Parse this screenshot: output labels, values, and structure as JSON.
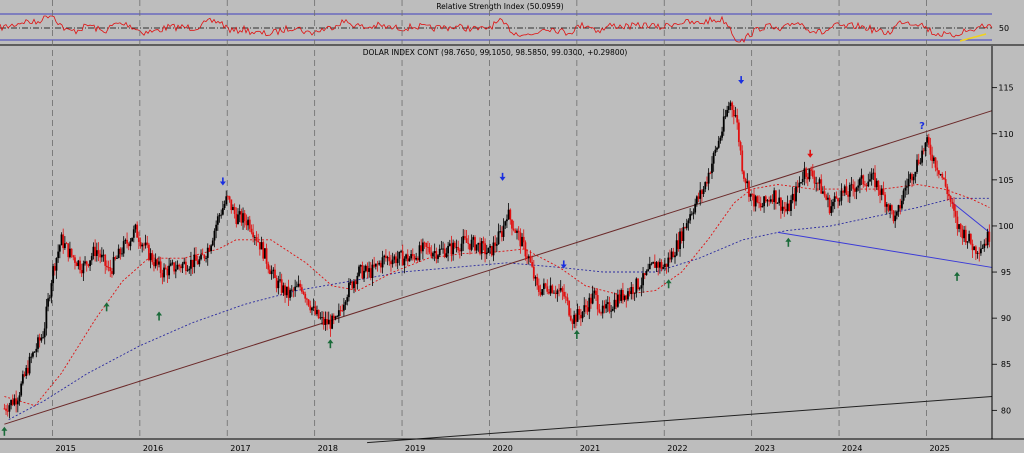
{
  "chart_data": [
    {
      "panel": "rsi",
      "type": "line",
      "title": "Relative Strength Index (50.0959)",
      "reference_level": 50,
      "y_tick_labels": [
        "50"
      ],
      "colors": {
        "line": "#e01010",
        "band": "#4040c0",
        "midline": "#000000"
      }
    },
    {
      "panel": "price",
      "type": "candlestick",
      "title": "DOLAR INDEX CONT (98.7650, 99.1050, 98.5850, 99.0300, +0.29800)",
      "x_tick_labels": [
        "2015",
        "2016",
        "2017",
        "2018",
        "2019",
        "2020",
        "2021",
        "2022",
        "2023",
        "2024",
        "2025"
      ],
      "y_tick_labels": [
        "115",
        "110",
        "105",
        "100",
        "95",
        "90",
        "85",
        "80"
      ],
      "ylim": [
        77,
        118
      ],
      "xlim": [
        2014.4,
        2025.75
      ],
      "series_close": [
        [
          2014.45,
          80.2
        ],
        [
          2014.6,
          81.5
        ],
        [
          2014.75,
          85.5
        ],
        [
          2014.9,
          88.5
        ],
        [
          2015.0,
          95.0
        ],
        [
          2015.1,
          98.5
        ],
        [
          2015.2,
          97.0
        ],
        [
          2015.35,
          95.5
        ],
        [
          2015.5,
          97.5
        ],
        [
          2015.65,
          95.0
        ],
        [
          2015.8,
          97.5
        ],
        [
          2015.95,
          99.5
        ],
        [
          2016.1,
          97.0
        ],
        [
          2016.25,
          95.0
        ],
        [
          2016.4,
          95.5
        ],
        [
          2016.55,
          96.0
        ],
        [
          2016.7,
          96.2
        ],
        [
          2016.8,
          98.0
        ],
        [
          2016.9,
          101.0
        ],
        [
          2017.0,
          103.0
        ],
        [
          2017.1,
          101.0
        ],
        [
          2017.25,
          100.5
        ],
        [
          2017.4,
          97.5
        ],
        [
          2017.55,
          94.0
        ],
        [
          2017.7,
          92.5
        ],
        [
          2017.85,
          93.5
        ],
        [
          2018.0,
          90.5
        ],
        [
          2018.1,
          89.5
        ],
        [
          2018.25,
          89.5
        ],
        [
          2018.35,
          92.5
        ],
        [
          2018.5,
          95.0
        ],
        [
          2018.65,
          95.0
        ],
        [
          2018.8,
          96.5
        ],
        [
          2018.95,
          96.5
        ],
        [
          2019.1,
          96.5
        ],
        [
          2019.25,
          97.5
        ],
        [
          2019.4,
          97.2
        ],
        [
          2019.55,
          97.5
        ],
        [
          2019.7,
          98.2
        ],
        [
          2019.85,
          98.0
        ],
        [
          2020.0,
          97.0
        ],
        [
          2020.15,
          99.5
        ],
        [
          2020.2,
          101.5
        ],
        [
          2020.3,
          99.5
        ],
        [
          2020.45,
          96.5
        ],
        [
          2020.55,
          93.0
        ],
        [
          2020.7,
          93.5
        ],
        [
          2020.85,
          92.5
        ],
        [
          2020.95,
          90.0
        ],
        [
          2021.05,
          90.5
        ],
        [
          2021.2,
          92.5
        ],
        [
          2021.3,
          90.5
        ],
        [
          2021.45,
          92.0
        ],
        [
          2021.6,
          93.0
        ],
        [
          2021.75,
          94.0
        ],
        [
          2021.9,
          96.0
        ],
        [
          2022.0,
          95.5
        ],
        [
          2022.15,
          98.0
        ],
        [
          2022.3,
          101.5
        ],
        [
          2022.45,
          104.0
        ],
        [
          2022.55,
          107.0
        ],
        [
          2022.65,
          110.0
        ],
        [
          2022.75,
          113.5
        ],
        [
          2022.82,
          112.0
        ],
        [
          2022.9,
          106.0
        ],
        [
          2023.0,
          103.0
        ],
        [
          2023.1,
          102.0
        ],
        [
          2023.25,
          103.5
        ],
        [
          2023.4,
          101.5
        ],
        [
          2023.5,
          103.5
        ],
        [
          2023.6,
          106.0
        ],
        [
          2023.7,
          105.5
        ],
        [
          2023.8,
          104.0
        ],
        [
          2023.9,
          102.0
        ],
        [
          2024.0,
          103.5
        ],
        [
          2024.1,
          103.5
        ],
        [
          2024.2,
          104.5
        ],
        [
          2024.3,
          105.0
        ],
        [
          2024.4,
          105.0
        ],
        [
          2024.55,
          102.5
        ],
        [
          2024.65,
          100.5
        ],
        [
          2024.75,
          104.0
        ],
        [
          2024.85,
          106.0
        ],
        [
          2024.95,
          108.0
        ],
        [
          2025.0,
          109.0
        ],
        [
          2025.05,
          108.0
        ],
        [
          2025.15,
          106.0
        ],
        [
          2025.25,
          103.5
        ],
        [
          2025.35,
          100.0
        ],
        [
          2025.45,
          99.0
        ],
        [
          2025.55,
          97.5
        ],
        [
          2025.65,
          98.0
        ],
        [
          2025.72,
          99.0
        ]
      ],
      "moving_average_red": [
        [
          2014.45,
          81.5
        ],
        [
          2014.8,
          80.5
        ],
        [
          2015.1,
          84.0
        ],
        [
          2015.5,
          90.0
        ],
        [
          2015.8,
          94.0
        ],
        [
          2016.1,
          96.5
        ],
        [
          2016.5,
          96.5
        ],
        [
          2016.9,
          97.5
        ],
        [
          2017.1,
          98.5
        ],
        [
          2017.5,
          98.5
        ],
        [
          2017.9,
          96.0
        ],
        [
          2018.2,
          93.5
        ],
        [
          2018.5,
          93.0
        ],
        [
          2018.9,
          95.0
        ],
        [
          2019.3,
          96.5
        ],
        [
          2019.7,
          97.0
        ],
        [
          2020.1,
          97.2
        ],
        [
          2020.4,
          97.5
        ],
        [
          2020.8,
          95.5
        ],
        [
          2021.1,
          93.5
        ],
        [
          2021.5,
          92.5
        ],
        [
          2021.9,
          93.0
        ],
        [
          2022.2,
          95.0
        ],
        [
          2022.5,
          98.5
        ],
        [
          2022.8,
          102.5
        ],
        [
          2023.0,
          104.0
        ],
        [
          2023.3,
          104.5
        ],
        [
          2023.7,
          104.0
        ],
        [
          2024.1,
          104.0
        ],
        [
          2024.5,
          104.0
        ],
        [
          2024.9,
          104.5
        ],
        [
          2025.2,
          104.0
        ],
        [
          2025.5,
          103.0
        ],
        [
          2025.72,
          102.0
        ]
      ],
      "moving_average_blue": [
        [
          2014.5,
          79.0
        ],
        [
          2014.9,
          81.0
        ],
        [
          2015.4,
          84.0
        ],
        [
          2016.0,
          87.0
        ],
        [
          2016.6,
          89.5
        ],
        [
          2017.2,
          91.5
        ],
        [
          2017.8,
          93.0
        ],
        [
          2018.4,
          94.0
        ],
        [
          2019.0,
          95.0
        ],
        [
          2019.6,
          95.5
        ],
        [
          2020.2,
          96.0
        ],
        [
          2020.8,
          95.5
        ],
        [
          2021.3,
          95.0
        ],
        [
          2021.9,
          95.0
        ],
        [
          2022.4,
          96.5
        ],
        [
          2022.9,
          98.5
        ],
        [
          2023.4,
          99.5
        ],
        [
          2023.9,
          100.0
        ],
        [
          2024.4,
          101.0
        ],
        [
          2024.9,
          102.0
        ],
        [
          2025.3,
          103.0
        ],
        [
          2025.72,
          103.0
        ]
      ],
      "trendlines": [
        {
          "from": [
            2014.45,
            78.5
          ],
          "to": [
            2025.75,
            112.5
          ],
          "color": "#6b2a2a"
        },
        {
          "from": [
            2018.6,
            76.5
          ],
          "to": [
            2025.75,
            81.5
          ],
          "color": "#222222"
        },
        {
          "from": [
            2023.3,
            99.3
          ],
          "to": [
            2025.75,
            95.5
          ],
          "color": "#3a3ad8"
        },
        {
          "from": [
            2025.3,
            102.5
          ],
          "to": [
            2025.72,
            99.3
          ],
          "color": "#3a3ad8"
        }
      ],
      "annotations": [
        {
          "x": 2016.95,
          "y": 104.5,
          "marker": "arrow-down",
          "color": "#1a2fe0"
        },
        {
          "x": 2020.15,
          "y": 105.0,
          "marker": "arrow-down",
          "color": "#1a2fe0"
        },
        {
          "x": 2020.85,
          "y": 95.5,
          "marker": "arrow-down",
          "color": "#1a2fe0"
        },
        {
          "x": 2022.88,
          "y": 115.5,
          "marker": "arrow-down",
          "color": "#1a2fe0"
        },
        {
          "x": 2023.67,
          "y": 107.5,
          "marker": "arrow-down",
          "color": "#e01010"
        },
        {
          "x": 2024.95,
          "y": 110.5,
          "marker": "question",
          "color": "#1a2fe0"
        },
        {
          "x": 2014.45,
          "y": 78.0,
          "marker": "arrow-up",
          "color": "#1b6b3a"
        },
        {
          "x": 2015.62,
          "y": 91.5,
          "marker": "arrow-up",
          "color": "#1b6b3a"
        },
        {
          "x": 2016.22,
          "y": 90.5,
          "marker": "arrow-up",
          "color": "#1b6b3a"
        },
        {
          "x": 2018.18,
          "y": 87.5,
          "marker": "arrow-up",
          "color": "#1b6b3a"
        },
        {
          "x": 2021.0,
          "y": 88.5,
          "marker": "arrow-up",
          "color": "#1b6b3a"
        },
        {
          "x": 2022.05,
          "y": 94.0,
          "marker": "arrow-up",
          "color": "#1b6b3a"
        },
        {
          "x": 2023.42,
          "y": 98.5,
          "marker": "arrow-up",
          "color": "#1b6b3a"
        },
        {
          "x": 2025.35,
          "y": 94.8,
          "marker": "arrow-up",
          "color": "#1b6b3a"
        }
      ],
      "grid": true,
      "colors": {
        "up": "#000000",
        "down": "#e01010",
        "background": "#bdbdbd"
      }
    }
  ]
}
